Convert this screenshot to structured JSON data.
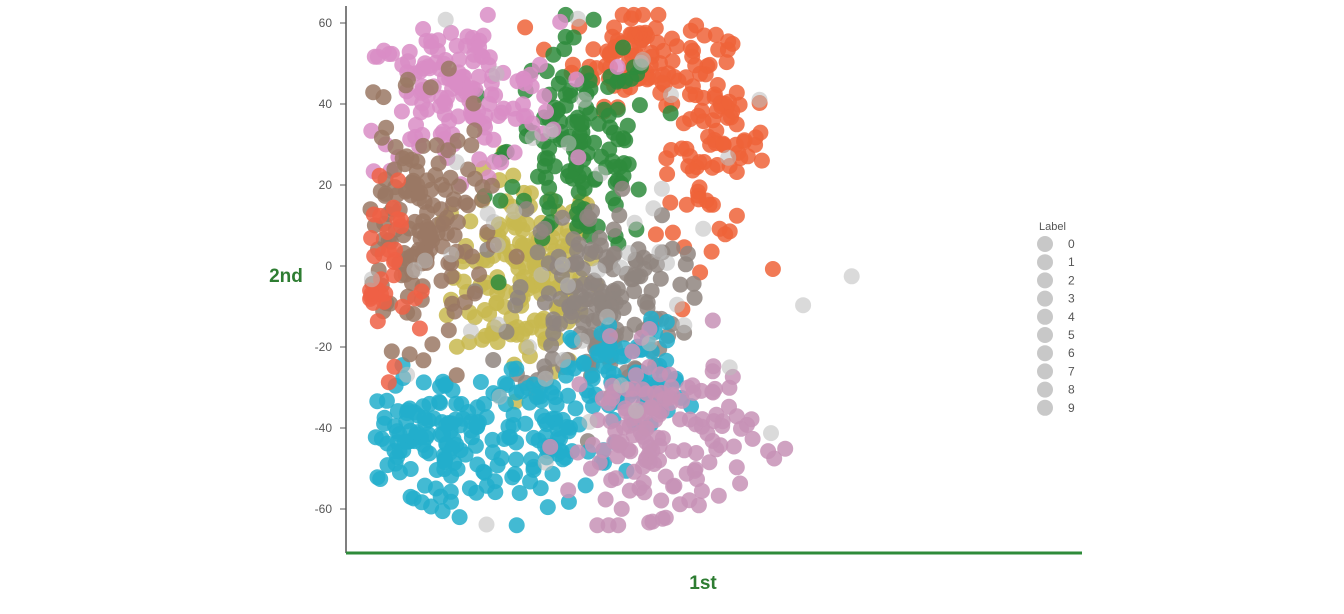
{
  "chart_data": {
    "type": "scatter",
    "title": "",
    "xlabel": "1st",
    "ylabel": "2nd",
    "axis_label_color": "#2e7d32",
    "axis_line_color": "#2e8b3a",
    "y_ticks": [
      60,
      40,
      20,
      0,
      -20,
      -40,
      -60
    ],
    "xlim": [
      -60,
      90
    ],
    "ylim": [
      -72,
      65
    ],
    "grid": false,
    "legend": {
      "title": "Label",
      "placement": "right",
      "entries": [
        "0",
        "1",
        "2",
        "3",
        "4",
        "5",
        "6",
        "7",
        "8",
        "9"
      ]
    },
    "series": [
      {
        "id": "0",
        "color": "#c8b94f",
        "clusters": [
          {
            "cx": -2,
            "cy": -2,
            "sx": 8,
            "sy": 12,
            "n": 170
          }
        ]
      },
      {
        "id": "1",
        "color": "#ee6338",
        "clusters": [
          {
            "cx": 22,
            "cy": 52,
            "sx": 7,
            "sy": 6,
            "n": 90
          },
          {
            "cx": 38,
            "cy": 30,
            "sx": 6,
            "sy": 12,
            "n": 90
          }
        ]
      },
      {
        "id": "2",
        "color": "#2e8b3c",
        "clusters": [
          {
            "cx": 10,
            "cy": 29,
            "sx": 8,
            "sy": 13,
            "n": 140
          }
        ]
      },
      {
        "id": "3",
        "color": "#d98dc6",
        "clusters": [
          {
            "cx": -17,
            "cy": 42,
            "sx": 11,
            "sy": 9,
            "n": 150
          }
        ]
      },
      {
        "id": "4",
        "color": "#8f857f",
        "clusters": [
          {
            "cx": 13,
            "cy": -9,
            "sx": 9,
            "sy": 12,
            "n": 170
          }
        ]
      },
      {
        "id": "5",
        "color": "#22aecb",
        "clusters": [
          {
            "cx": 20,
            "cy": -28,
            "sx": 6,
            "sy": 7,
            "n": 80
          },
          {
            "cx": -22,
            "cy": -42,
            "sx": 10,
            "sy": 8,
            "n": 140
          },
          {
            "cx": 4,
            "cy": -42,
            "sx": 6,
            "sy": 8,
            "n": 70
          }
        ]
      },
      {
        "id": "6",
        "color": "#c792b6",
        "clusters": [
          {
            "cx": 27,
            "cy": -42,
            "sx": 10,
            "sy": 11,
            "n": 150
          }
        ]
      },
      {
        "id": "7",
        "color": "#9a7864",
        "clusters": [
          {
            "cx": -25,
            "cy": 8,
            "sx": 7,
            "sy": 14,
            "n": 150
          }
        ]
      },
      {
        "id": "8",
        "color": "#ee6045",
        "clusters": [
          {
            "cx": -42,
            "cy": -3,
            "sx": 6,
            "sy": 12,
            "n": 160
          }
        ]
      },
      {
        "id": "9",
        "color": "#bbbbbb",
        "clusters": [
          {
            "cx": 6,
            "cy": 0,
            "sx": 30,
            "sy": 30,
            "n": 60
          }
        ]
      }
    ]
  }
}
